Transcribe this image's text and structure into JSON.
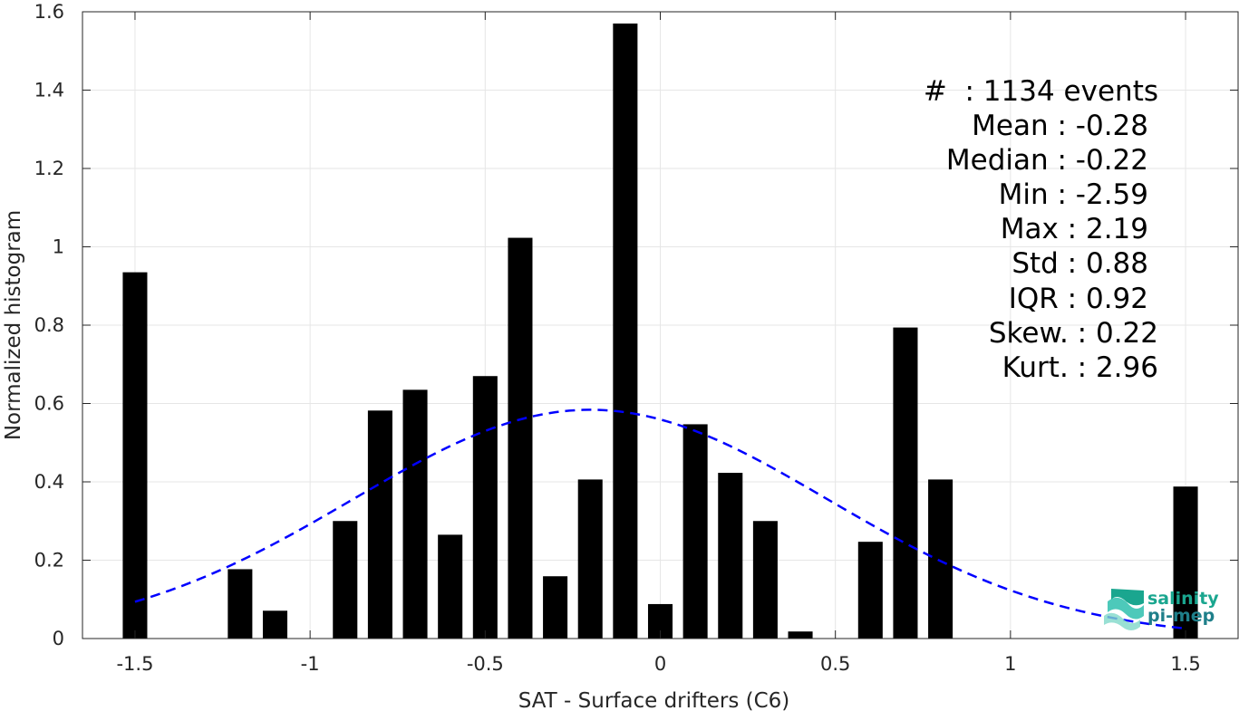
{
  "chart_data": {
    "type": "bar",
    "title": "",
    "xlabel": "SAT - Surface drifters (C6)",
    "ylabel": "Normalized histogram",
    "xlim": [
      -1.65,
      1.65
    ],
    "ylim": [
      0,
      1.6
    ],
    "grid": true,
    "xticks": [
      -1.5,
      -1,
      -0.5,
      0,
      0.5,
      1,
      1.5
    ],
    "xtick_labels": [
      "-1.5",
      "-1",
      "-0.5",
      "0",
      "0.5",
      "1",
      "1.5"
    ],
    "yticks": [
      0,
      0.2,
      0.4,
      0.6,
      0.8,
      1,
      1.2,
      1.4,
      1.6
    ],
    "ytick_labels": [
      "0",
      "0.2",
      "0.4",
      "0.6",
      "0.8",
      "1",
      "1.2",
      "1.4",
      "1.6"
    ],
    "bar_width": 0.07,
    "bars": [
      {
        "x": -1.5,
        "y": 0.935
      },
      {
        "x": -1.2,
        "y": 0.177
      },
      {
        "x": -1.1,
        "y": 0.071
      },
      {
        "x": -0.9,
        "y": 0.3
      },
      {
        "x": -0.8,
        "y": 0.582
      },
      {
        "x": -0.7,
        "y": 0.635
      },
      {
        "x": -0.6,
        "y": 0.265
      },
      {
        "x": -0.5,
        "y": 0.67
      },
      {
        "x": -0.4,
        "y": 1.023
      },
      {
        "x": -0.3,
        "y": 0.159
      },
      {
        "x": -0.2,
        "y": 0.406
      },
      {
        "x": -0.1,
        "y": 1.57
      },
      {
        "x": 0.0,
        "y": 0.088
      },
      {
        "x": 0.1,
        "y": 0.547
      },
      {
        "x": 0.2,
        "y": 0.423
      },
      {
        "x": 0.3,
        "y": 0.3
      },
      {
        "x": 0.4,
        "y": 0.018
      },
      {
        "x": 0.6,
        "y": 0.247
      },
      {
        "x": 0.7,
        "y": 0.794
      },
      {
        "x": 0.8,
        "y": 0.406
      },
      {
        "x": 1.5,
        "y": 0.388
      }
    ],
    "fit_curve": {
      "style": "dashed",
      "color": "#0000ff",
      "mean": -0.2,
      "std": 0.68,
      "peak": 0.584,
      "x_range": [
        -1.5,
        1.5
      ]
    },
    "stats_box": {
      "location": "top-right",
      "lines": [
        "#  : 1134 events",
        "Mean : -0.28",
        "Median : -0.22",
        "Min : -2.59",
        "Max : 2.19",
        "Std : 0.88",
        "IQR : 0.92",
        "Skew. : 0.22",
        "Kurt. : 2.96"
      ]
    },
    "colors": {
      "bar": "#000000",
      "grid": "#e6e6e6",
      "axis": "#262626"
    }
  },
  "logo": {
    "line1": "salinity",
    "line2": "pi-mep",
    "color_primary": "#1aa68f",
    "color_secondary": "#2ec0ae"
  }
}
